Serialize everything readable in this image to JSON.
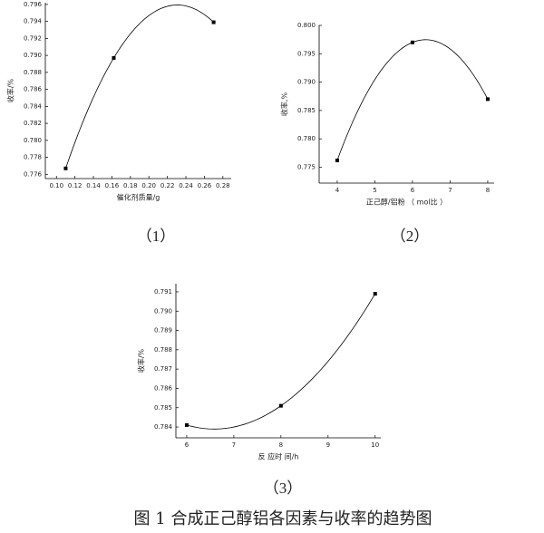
{
  "chart_data": [
    {
      "type": "scatter",
      "caption": "（1）",
      "x_label": "催化剂质量/g",
      "y_label": "收率/%",
      "color": "#000000",
      "x": [
        0.11,
        0.162,
        0.27
      ],
      "values": [
        0.7767,
        0.7897,
        0.7939
      ],
      "xlim": [
        0.088,
        0.289
      ],
      "ylim": [
        0.7755,
        0.7962
      ],
      "xticks": [
        {
          "value": 0.1,
          "label": "0.10"
        },
        0.12,
        0.14,
        0.16,
        0.18,
        {
          "value": 0.2,
          "label": "0.20"
        },
        0.22,
        0.24,
        0.26,
        0.28
      ],
      "yticks": [
        0.776,
        0.778,
        {
          "value": 0.78,
          "label": "0.780"
        },
        0.782,
        0.784,
        0.786,
        0.788,
        {
          "value": 0.79,
          "label": "0.790"
        },
        0.792,
        0.794,
        0.796
      ]
    },
    {
      "type": "scatter",
      "caption": "（2）",
      "x_label": "正己醇/铝粉 （ mol比 ）",
      "y_label": "收率,%",
      "color": "#000000",
      "x": [
        4,
        6,
        8
      ],
      "values": [
        0.7762,
        0.797,
        0.787
      ],
      "xlim": [
        3.52,
        8.17
      ],
      "ylim": [
        0.7722,
        0.8
      ],
      "xticks": [
        4,
        5,
        6,
        7,
        8
      ],
      "yticks": [
        0.775,
        {
          "value": 0.78,
          "label": "0.780"
        },
        0.785,
        {
          "value": 0.79,
          "label": "0.790"
        },
        0.795,
        {
          "value": 0.8,
          "label": "0.800"
        }
      ]
    },
    {
      "type": "scatter",
      "caption": "（3）",
      "x_label": "反 应时 间/h",
      "y_label": "收率/%",
      "color": "#000000",
      "x": [
        6,
        8,
        10
      ],
      "values": [
        0.7841,
        0.7851,
        0.7909
      ],
      "xlim": [
        5.77,
        10.12
      ],
      "ylim": [
        0.78344,
        0.79142
      ],
      "xticks": [
        6,
        7,
        8,
        9,
        10
      ],
      "yticks": [
        0.784,
        0.785,
        0.786,
        0.787,
        0.788,
        0.789,
        {
          "value": 0.79,
          "label": "0.790"
        },
        0.791
      ]
    }
  ],
  "figure_caption": "图 1 合成正己醇铝各因素与收率的趋势图"
}
